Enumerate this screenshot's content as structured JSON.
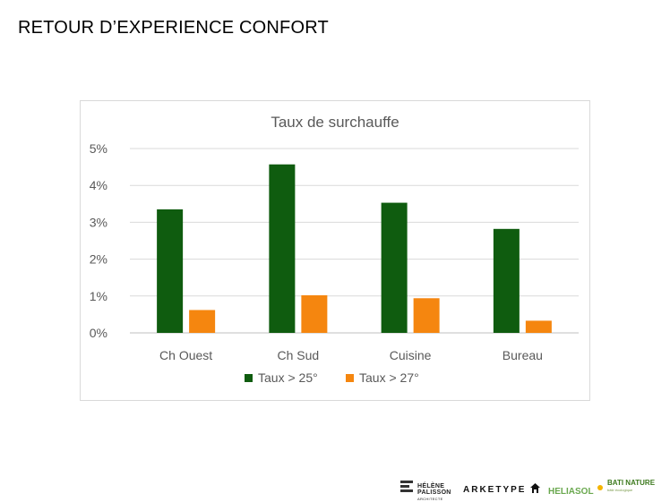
{
  "slide": {
    "title": "RETOUR D’EXPERIENCE CONFORT"
  },
  "chart_data": {
    "type": "bar",
    "title": "Taux de surchauffe",
    "categories": [
      "Ch Ouest",
      "Ch Sud",
      "Cuisine",
      "Bureau"
    ],
    "series": [
      {
        "name": "Taux > 25°",
        "color": "#0f5c0f",
        "values": [
          3.35,
          4.57,
          3.53,
          2.82
        ]
      },
      {
        "name": "Taux > 27°",
        "color": "#f5860f",
        "values": [
          0.62,
          1.02,
          0.94,
          0.33
        ]
      }
    ],
    "ylim": [
      0,
      5
    ],
    "yticks": [
      "0%",
      "1%",
      "2%",
      "3%",
      "4%",
      "5%"
    ],
    "grid": true,
    "legend_position": "bottom"
  },
  "logos": {
    "helene_line1": "HÉLÈNE",
    "helene_line2": "PALISSON",
    "helene_line3": "ARCHITECTE",
    "arketype": "ARKETYPE",
    "heliasol": "HELIASOL",
    "bati_nature": "BATI NATURE",
    "bati_sub": "bâtir écologique",
    "house_icon": "house-icon",
    "sun_icon": "sun-icon"
  }
}
